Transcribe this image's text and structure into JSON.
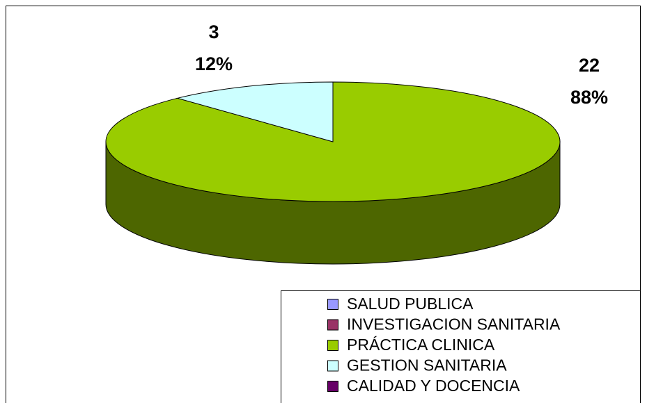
{
  "chart_data": {
    "type": "pie3d",
    "categories": [
      "SALUD PUBLICA",
      "INVESTIGACION SANITARIA",
      "PRÁCTICA CLINICA",
      "GESTION SANITARIA",
      "CALIDAD Y DOCENCIA"
    ],
    "values": [
      0,
      0,
      22,
      3,
      0
    ],
    "value_labels": [
      null,
      null,
      "88%",
      "12%",
      null
    ],
    "colors": [
      "#9999ff",
      "#993366",
      "#99cc00",
      "#ccffff",
      "#660066"
    ],
    "side_colors": [
      "#4d4d80",
      "#4d1a33",
      "#4d6600",
      "#668080",
      "#330033"
    ],
    "legend": "bottom-right"
  }
}
